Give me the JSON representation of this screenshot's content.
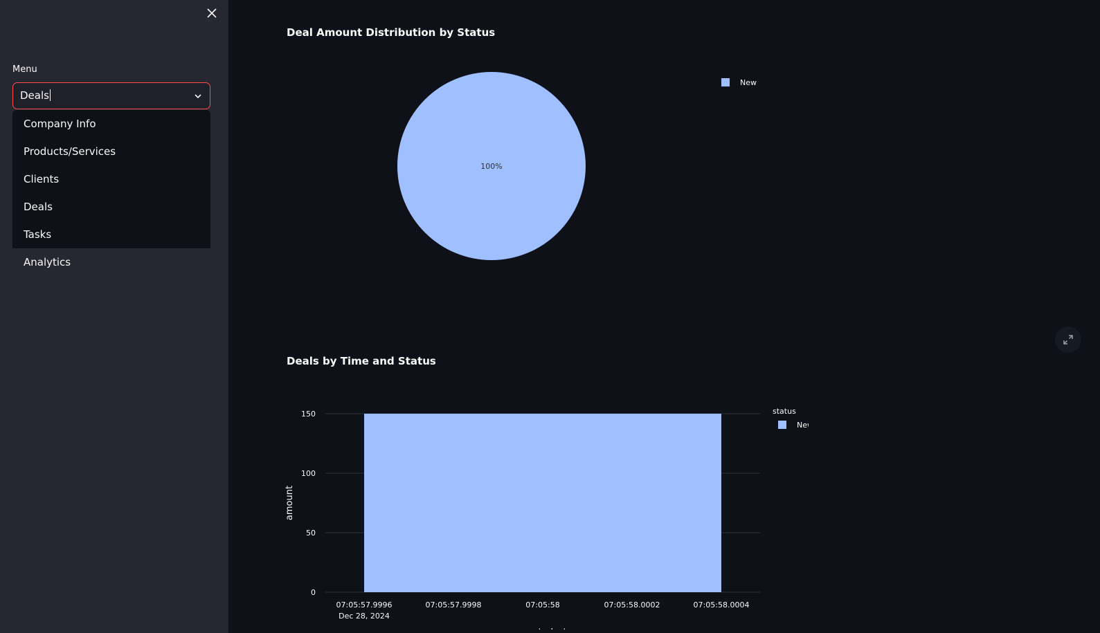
{
  "sidebar": {
    "menu_label": "Menu",
    "select_value": "Deals",
    "options": [
      "Company Info",
      "Products/Services",
      "Clients",
      "Deals",
      "Tasks",
      "Analytics"
    ],
    "highlighted_option": "Analytics"
  },
  "colors": {
    "accent": "#ff4b4b",
    "series_new": "#a0bfff",
    "background": "#0e1117",
    "sidebar": "#262730"
  },
  "charts": {
    "pie_title": "Deal Amount Distribution by Status",
    "pie_label": "100%",
    "bar_title": "Deals by Time and Status"
  },
  "chart_data": [
    {
      "type": "pie",
      "title": "Deal Amount Distribution by Status",
      "labels": [
        "New"
      ],
      "values": [
        100
      ],
      "slice_labels": [
        "100%"
      ],
      "legend": "top-right"
    },
    {
      "type": "bar",
      "title": "Deals by Time and Status",
      "xlabel": "created_at",
      "ylabel": "amount",
      "legend_title": "status",
      "legend": "top-right",
      "x_ticks": [
        "07:05:57.9996",
        "07:05:57.9998",
        "07:05:58",
        "07:05:58.0002",
        "07:05:58.0004"
      ],
      "x_tick_sublabel": "Dec 28, 2024",
      "y_ticks": [
        0,
        50,
        100,
        150
      ],
      "ylim": [
        0,
        150
      ],
      "series": [
        {
          "name": "New",
          "x_start": "07:05:57.9996",
          "x_end": "07:05:58.0004",
          "values": [
            150
          ]
        }
      ],
      "grid": true
    }
  ]
}
